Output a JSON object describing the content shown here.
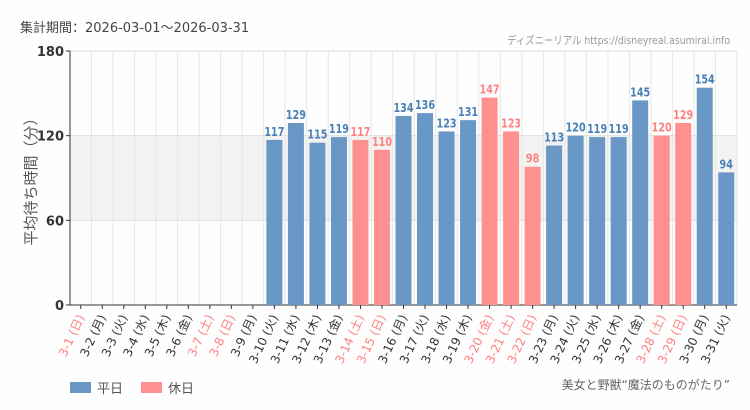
{
  "header": {
    "period": "集計期間：2026-03-01～2026-03-31",
    "credit": "ディズニーリアル https://disneyreal.asumirai.info"
  },
  "attraction": "美女と野獣“魔法のものがたり”",
  "colors": {
    "weekday": "#6a98c6",
    "holiday": "#ff9090",
    "holiday_text": "#ff8080",
    "band": "#f3f3f3"
  },
  "chart_data": {
    "type": "bar",
    "title": "",
    "xlabel": "",
    "ylabel": "平均待ち時間（分）",
    "ylim": [
      0,
      180
    ],
    "yticks": [
      0,
      60,
      120,
      180
    ],
    "grid": true,
    "highlight_band": [
      60,
      120
    ],
    "legend": {
      "placement": "bottom-left",
      "entries": [
        {
          "key": "weekday",
          "label": "平日"
        },
        {
          "key": "holiday",
          "label": "休日"
        }
      ]
    },
    "categories": [
      "3-1 (日)",
      "3-2 (月)",
      "3-3 (火)",
      "3-4 (水)",
      "3-5 (木)",
      "3-6 (金)",
      "3-7 (土)",
      "3-8 (日)",
      "3-9 (月)",
      "3-10 (火)",
      "3-11 (水)",
      "3-12 (木)",
      "3-13 (金)",
      "3-14 (土)",
      "3-15 (日)",
      "3-16 (月)",
      "3-17 (火)",
      "3-18 (水)",
      "3-19 (木)",
      "3-20 (金)",
      "3-21 (土)",
      "3-22 (日)",
      "3-23 (月)",
      "3-24 (火)",
      "3-25 (水)",
      "3-26 (木)",
      "3-27 (金)",
      "3-28 (土)",
      "3-29 (日)",
      "3-30 (月)",
      "3-31 (火)"
    ],
    "holiday": [
      true,
      false,
      false,
      false,
      false,
      false,
      true,
      true,
      false,
      false,
      false,
      false,
      false,
      true,
      true,
      false,
      false,
      false,
      false,
      true,
      true,
      true,
      false,
      false,
      false,
      false,
      false,
      true,
      true,
      false,
      false
    ],
    "values": [
      null,
      null,
      null,
      null,
      null,
      null,
      null,
      null,
      null,
      117,
      129,
      115,
      119,
      117,
      110,
      134,
      136,
      123,
      131,
      147,
      123,
      98,
      113,
      120,
      119,
      119,
      145,
      120,
      129,
      154,
      94
    ]
  }
}
